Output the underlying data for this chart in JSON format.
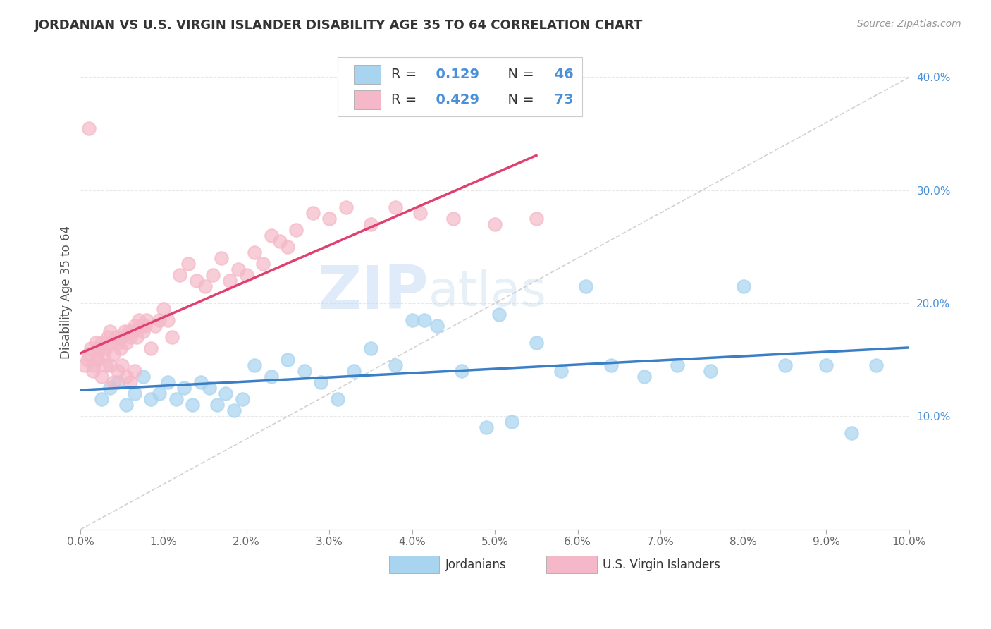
{
  "title": "JORDANIAN VS U.S. VIRGIN ISLANDER DISABILITY AGE 35 TO 64 CORRELATION CHART",
  "source": "Source: ZipAtlas.com",
  "ylabel": "Disability Age 35 to 64",
  "xlim": [
    0.0,
    10.0
  ],
  "ylim": [
    0.0,
    42.0
  ],
  "x_ticks": [
    0.0,
    1.0,
    2.0,
    3.0,
    4.0,
    5.0,
    6.0,
    7.0,
    8.0,
    9.0,
    10.0
  ],
  "y_ticks": [
    0.0,
    10.0,
    20.0,
    30.0,
    40.0
  ],
  "blue_R": 0.129,
  "blue_N": 46,
  "pink_R": 0.429,
  "pink_N": 73,
  "blue_color": "#A8D4F0",
  "pink_color": "#F5B8C8",
  "blue_line_color": "#3A7EC6",
  "pink_line_color": "#E04070",
  "ref_line_color": "#CCCCCC",
  "background_color": "#FFFFFF",
  "grid_color": "#E8E8E8",
  "title_color": "#333333",
  "watermark": "ZIPatlas",
  "legend_label_blue": "Jordanians",
  "legend_label_pink": "U.S. Virgin Islanders",
  "blue_x": [
    0.25,
    0.35,
    0.45,
    0.55,
    0.65,
    0.75,
    0.85,
    0.95,
    1.05,
    1.15,
    1.25,
    1.35,
    1.45,
    1.55,
    1.65,
    1.75,
    1.85,
    1.95,
    2.1,
    2.3,
    2.5,
    2.7,
    2.9,
    3.1,
    3.3,
    3.5,
    3.8,
    4.0,
    4.3,
    4.6,
    4.9,
    5.2,
    5.5,
    5.8,
    6.1,
    6.4,
    6.8,
    7.2,
    7.6,
    8.0,
    8.5,
    9.0,
    9.3,
    9.6,
    4.15,
    5.05
  ],
  "blue_y": [
    11.5,
    12.5,
    13.0,
    11.0,
    12.0,
    13.5,
    11.5,
    12.0,
    13.0,
    11.5,
    12.5,
    11.0,
    13.0,
    12.5,
    11.0,
    12.0,
    10.5,
    11.5,
    14.5,
    13.5,
    15.0,
    14.0,
    13.0,
    11.5,
    14.0,
    16.0,
    14.5,
    18.5,
    18.0,
    14.0,
    9.0,
    9.5,
    16.5,
    14.0,
    21.5,
    14.5,
    13.5,
    14.5,
    14.0,
    21.5,
    14.5,
    14.5,
    8.5,
    14.5,
    18.5,
    19.0
  ],
  "pink_x": [
    0.05,
    0.08,
    0.1,
    0.12,
    0.15,
    0.18,
    0.2,
    0.22,
    0.25,
    0.28,
    0.3,
    0.33,
    0.35,
    0.38,
    0.4,
    0.43,
    0.45,
    0.48,
    0.5,
    0.53,
    0.55,
    0.58,
    0.6,
    0.63,
    0.65,
    0.68,
    0.7,
    0.73,
    0.75,
    0.78,
    0.8,
    0.85,
    0.9,
    0.95,
    1.0,
    1.05,
    1.1,
    1.2,
    1.3,
    1.4,
    1.5,
    1.6,
    1.7,
    1.8,
    1.9,
    2.0,
    2.1,
    2.2,
    2.3,
    2.4,
    2.5,
    2.6,
    2.8,
    3.0,
    3.2,
    3.5,
    3.8,
    4.1,
    4.5,
    5.0,
    5.5,
    0.45,
    0.3,
    0.2,
    0.1,
    0.55,
    0.65,
    0.4,
    0.35,
    0.25,
    0.15,
    0.5,
    0.6
  ],
  "pink_y": [
    14.5,
    15.0,
    15.5,
    16.0,
    14.5,
    16.5,
    15.0,
    16.0,
    16.5,
    15.5,
    16.0,
    17.0,
    17.5,
    16.5,
    15.5,
    17.0,
    16.5,
    16.0,
    17.0,
    17.5,
    16.5,
    17.5,
    17.0,
    17.5,
    18.0,
    17.0,
    18.5,
    18.0,
    17.5,
    18.0,
    18.5,
    16.0,
    18.0,
    18.5,
    19.5,
    18.5,
    17.0,
    22.5,
    23.5,
    22.0,
    21.5,
    22.5,
    24.0,
    22.0,
    23.0,
    22.5,
    24.5,
    23.5,
    26.0,
    25.5,
    25.0,
    26.5,
    28.0,
    27.5,
    28.5,
    27.0,
    28.5,
    28.0,
    27.5,
    27.0,
    27.5,
    14.0,
    14.5,
    15.0,
    35.5,
    13.5,
    14.0,
    13.0,
    14.5,
    13.5,
    14.0,
    14.5,
    13.0
  ]
}
